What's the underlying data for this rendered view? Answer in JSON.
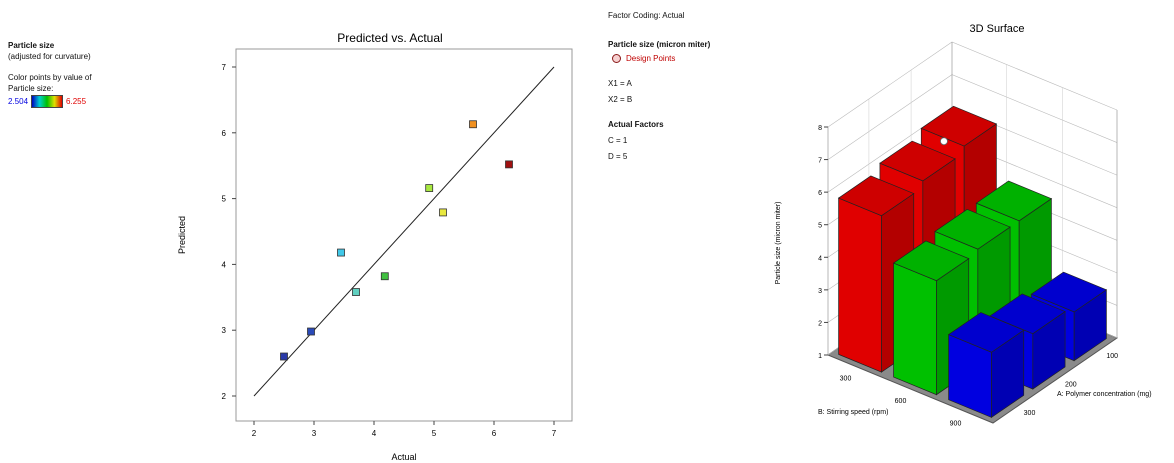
{
  "left_legend": {
    "response": "Particle size",
    "note": "(adjusted for curvature)",
    "color_by_line1": "Color points by value of",
    "color_by_line2": "Particle size:",
    "min_label": "2.504",
    "max_label": "6.255",
    "min_color": "#0000e0",
    "max_color": "#e00000"
  },
  "mid_legend": {
    "factor_coding": "Factor Coding: Actual",
    "response_title": "Particle size (micron miter)",
    "design_points": "Design Points",
    "x1": "X1 = A",
    "x2": "X2 = B",
    "actual_factors_title": "Actual Factors",
    "c": "C = 1",
    "d": "D = 5"
  },
  "chart_data": [
    {
      "type": "scatter",
      "title": "Predicted vs. Actual",
      "xlabel": "Actual",
      "ylabel": "Predicted",
      "xlim": [
        2,
        7
      ],
      "ylim": [
        2,
        7
      ],
      "xticks": [
        "2",
        "3",
        "4",
        "5",
        "6",
        "7"
      ],
      "yticks": [
        "2",
        "3",
        "4",
        "5",
        "6",
        "7"
      ],
      "reference_line": [
        [
          2,
          2
        ],
        [
          7,
          7
        ]
      ],
      "points": [
        {
          "x": 2.5,
          "y": 2.6,
          "color": "#2a3aa8"
        },
        {
          "x": 2.95,
          "y": 2.98,
          "color": "#2a4ab8"
        },
        {
          "x": 3.45,
          "y": 4.18,
          "color": "#40c8e8"
        },
        {
          "x": 3.7,
          "y": 3.58,
          "color": "#60d0c0"
        },
        {
          "x": 4.18,
          "y": 3.82,
          "color": "#40c040"
        },
        {
          "x": 4.92,
          "y": 5.16,
          "color": "#a8e840"
        },
        {
          "x": 5.15,
          "y": 4.79,
          "color": "#e8e840"
        },
        {
          "x": 5.65,
          "y": 6.13,
          "color": "#f09020"
        },
        {
          "x": 6.25,
          "y": 5.52,
          "color": "#a01010"
        }
      ]
    },
    {
      "type": "bar",
      "subtype": "3d",
      "title": "3D Surface",
      "zlabel": "Particle size (micron miter)",
      "xlabel": "B: Stirring speed (rpm)",
      "ylabel": "A: Polymer concentration (mg)",
      "zlim": [
        1,
        8
      ],
      "zticks": [
        "1",
        "2",
        "3",
        "4",
        "5",
        "6",
        "7",
        "8"
      ],
      "b_ticks": [
        "300",
        "600",
        "900"
      ],
      "a_ticks": [
        "300",
        "200",
        "100"
      ],
      "bars": [
        {
          "b": "300",
          "a": "300",
          "value": 5.8,
          "color": "#e00000"
        },
        {
          "b": "300",
          "a": "200",
          "value": 6.0,
          "color": "#e00000"
        },
        {
          "b": "300",
          "a": "100",
          "value": 6.2,
          "color": "#e00000"
        },
        {
          "b": "600",
          "a": "300",
          "value": 4.5,
          "color": "#00c000"
        },
        {
          "b": "600",
          "a": "200",
          "value": 4.6,
          "color": "#00c000"
        },
        {
          "b": "600",
          "a": "100",
          "value": 4.6,
          "color": "#00c000"
        },
        {
          "b": "900",
          "a": "300",
          "value": 3.0,
          "color": "#0000e0"
        },
        {
          "b": "900",
          "a": "200",
          "value": 2.7,
          "color": "#0000e0"
        },
        {
          "b": "900",
          "a": "100",
          "value": 2.5,
          "color": "#0000e0"
        }
      ],
      "design_point": {
        "b": "300",
        "a": "100",
        "value": 6.2
      }
    }
  ]
}
